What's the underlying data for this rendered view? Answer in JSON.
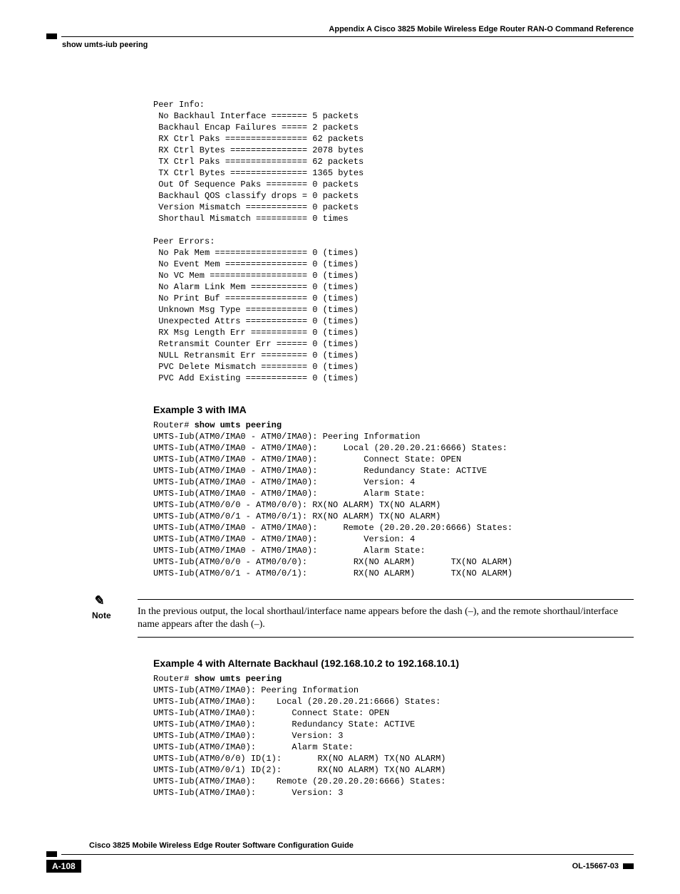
{
  "header": {
    "appendix": "Appendix A    Cisco 3825 Mobile Wireless Edge Router RAN-O Command Reference",
    "section": "show umts-iub peering"
  },
  "block1": "Peer Info:\n No Backhaul Interface ======= 5 packets\n Backhaul Encap Failures ===== 2 packets\n RX Ctrl Paks ================ 62 packets\n RX Ctrl Bytes =============== 2078 bytes\n TX Ctrl Paks ================ 62 packets\n TX Ctrl Bytes =============== 1365 bytes\n Out Of Sequence Paks ======== 0 packets\n Backhaul QOS classify drops = 0 packets\n Version Mismatch ============ 0 packets\n Shorthaul Mismatch ========== 0 times\n\nPeer Errors:\n No Pak Mem ================== 0 (times)\n No Event Mem ================ 0 (times)\n No VC Mem =================== 0 (times)\n No Alarm Link Mem =========== 0 (times)\n No Print Buf ================ 0 (times)\n Unknown Msg Type ============ 0 (times)\n Unexpected Attrs ============ 0 (times)\n RX Msg Length Err =========== 0 (times)\n Retransmit Counter Err ====== 0 (times)\n NULL Retransmit Err ========= 0 (times)\n PVC Delete Mismatch ========= 0 (times)\n PVC Add Existing ============ 0 (times)",
  "example3": {
    "title": "Example 3 with IMA",
    "prompt": "Router# ",
    "cmd": "show umts peering",
    "body": "UMTS-Iub(ATM0/IMA0 - ATM0/IMA0): Peering Information\nUMTS-Iub(ATM0/IMA0 - ATM0/IMA0):     Local (20.20.20.21:6666) States:\nUMTS-Iub(ATM0/IMA0 - ATM0/IMA0):         Connect State: OPEN\nUMTS-Iub(ATM0/IMA0 - ATM0/IMA0):         Redundancy State: ACTIVE\nUMTS-Iub(ATM0/IMA0 - ATM0/IMA0):         Version: 4\nUMTS-Iub(ATM0/IMA0 - ATM0/IMA0):         Alarm State:\nUMTS-Iub(ATM0/0/0 - ATM0/0/0): RX(NO ALARM) TX(NO ALARM)\nUMTS-Iub(ATM0/0/1 - ATM0/0/1): RX(NO ALARM) TX(NO ALARM)\nUMTS-Iub(ATM0/IMA0 - ATM0/IMA0):     Remote (20.20.20.20:6666) States:\nUMTS-Iub(ATM0/IMA0 - ATM0/IMA0):         Version: 4\nUMTS-Iub(ATM0/IMA0 - ATM0/IMA0):         Alarm State:\nUMTS-Iub(ATM0/0/0 - ATM0/0/0):         RX(NO ALARM)       TX(NO ALARM)\nUMTS-Iub(ATM0/0/1 - ATM0/0/1):         RX(NO ALARM)       TX(NO ALARM)"
  },
  "note": {
    "label": "Note",
    "text": "In the previous output, the local shorthaul/interface name appears before the dash (–), and the remote shorthaul/interface name appears after the dash (–)."
  },
  "example4": {
    "title": "Example 4 with Alternate Backhaul (192.168.10.2 to 192.168.10.1)",
    "prompt": "Router# ",
    "cmd": "show umts peering",
    "body": "UMTS-Iub(ATM0/IMA0): Peering Information\nUMTS-Iub(ATM0/IMA0):    Local (20.20.20.21:6666) States:\nUMTS-Iub(ATM0/IMA0):       Connect State: OPEN\nUMTS-Iub(ATM0/IMA0):       Redundancy State: ACTIVE\nUMTS-Iub(ATM0/IMA0):       Version: 3\nUMTS-Iub(ATM0/IMA0):       Alarm State:\nUMTS-Iub(ATM0/0/0) ID(1):       RX(NO ALARM) TX(NO ALARM)\nUMTS-Iub(ATM0/0/1) ID(2):       RX(NO ALARM) TX(NO ALARM)\nUMTS-Iub(ATM0/IMA0):    Remote (20.20.20.20:6666) States:\nUMTS-Iub(ATM0/IMA0):       Version: 3"
  },
  "footer": {
    "title": "Cisco 3825 Mobile Wireless Edge Router Software Configuration Guide",
    "page": "A-108",
    "ol": "OL-15667-03"
  }
}
